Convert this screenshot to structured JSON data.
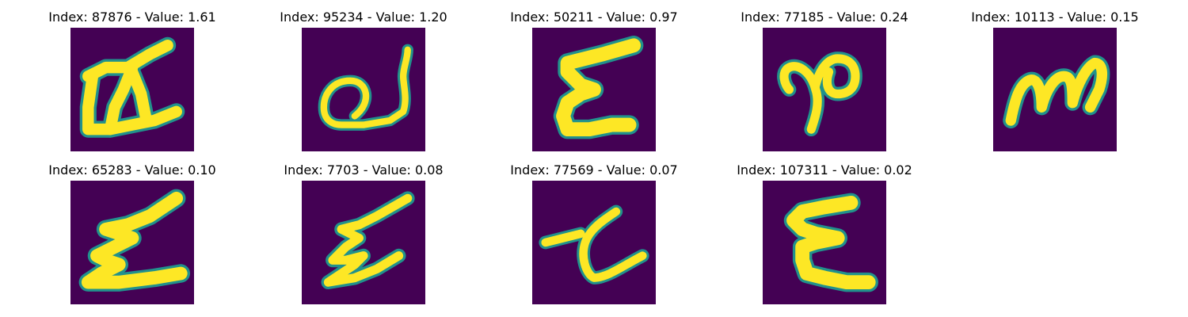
{
  "colors": {
    "background": "#440154",
    "edge": "#21918c",
    "stroke": "#fde725"
  },
  "panels": [
    {
      "title": "Index: 87876 - Value: 1.61"
    },
    {
      "title": "Index: 95234 - Value: 1.20"
    },
    {
      "title": "Index: 50211 - Value: 0.97"
    },
    {
      "title": "Index: 77185 - Value: 0.24"
    },
    {
      "title": "Index: 10113 - Value: 0.15"
    },
    {
      "title": "Index: 65283 - Value: 0.10"
    },
    {
      "title": "Index: 7703 - Value: 0.08"
    },
    {
      "title": "Index: 77569 - Value: 0.07"
    },
    {
      "title": "Index: 107311 - Value: 0.02"
    }
  ]
}
